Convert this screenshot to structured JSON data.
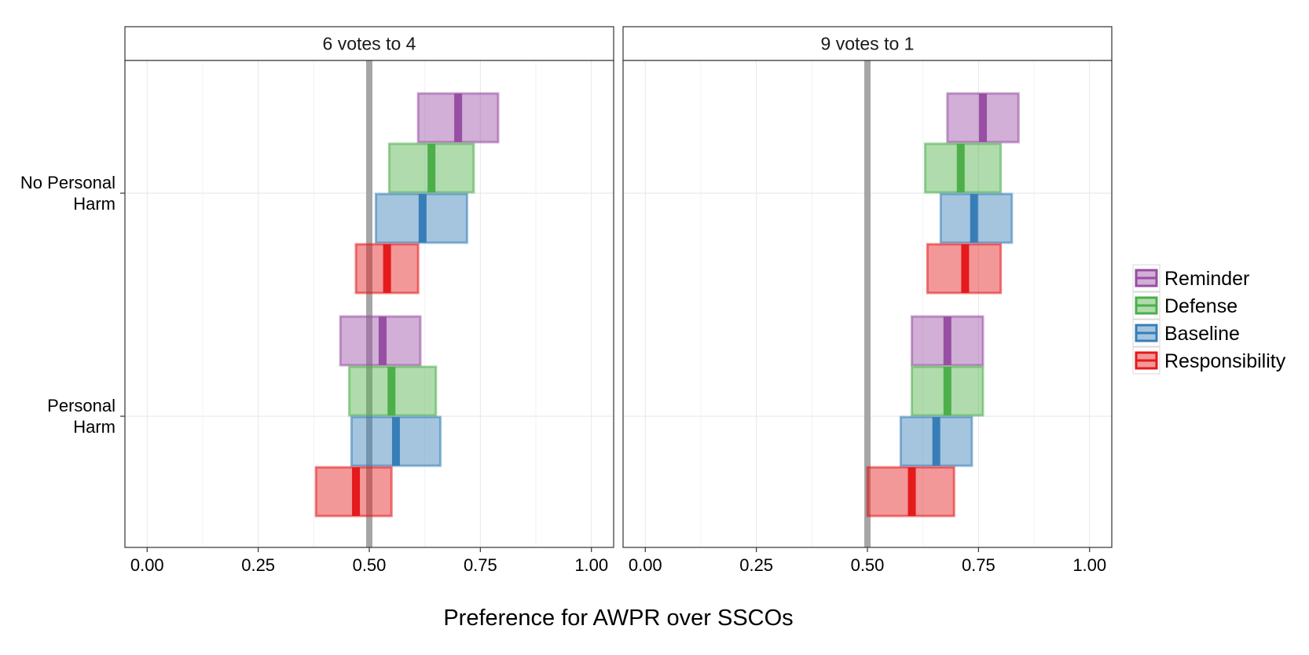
{
  "chart_data": {
    "type": "crossbar",
    "xlabel": "Preference for AWPR over SSCOs",
    "ylabel": "",
    "xlim": [
      -0.05,
      1.05
    ],
    "x_ticks": [
      0.0,
      0.25,
      0.5,
      0.75,
      1.0
    ],
    "x_tick_labels": [
      "0.00",
      "0.25",
      "0.50",
      "0.75",
      "1.00"
    ],
    "reference_line_x": 0.5,
    "grid": true,
    "legend_position": "right",
    "y_categories": [
      {
        "label_line1": "No Personal",
        "label_line2": "Harm"
      },
      {
        "label_line1": "Personal",
        "label_line2": "Harm"
      }
    ],
    "series": [
      {
        "name": "Reminder",
        "color": "#984EA3"
      },
      {
        "name": "Defense",
        "color": "#4DAF4A"
      },
      {
        "name": "Baseline",
        "color": "#377EB8"
      },
      {
        "name": "Responsibility",
        "color": "#E41A1C"
      }
    ],
    "panels": [
      {
        "title": "6 votes to 4",
        "bars": [
          {
            "group": 0,
            "series": 0,
            "low": 0.61,
            "mid": 0.7,
            "high": 0.79
          },
          {
            "group": 0,
            "series": 1,
            "low": 0.545,
            "mid": 0.64,
            "high": 0.735
          },
          {
            "group": 0,
            "series": 2,
            "low": 0.515,
            "mid": 0.62,
            "high": 0.72
          },
          {
            "group": 0,
            "series": 3,
            "low": 0.47,
            "mid": 0.54,
            "high": 0.61
          },
          {
            "group": 1,
            "series": 0,
            "low": 0.435,
            "mid": 0.53,
            "high": 0.615
          },
          {
            "group": 1,
            "series": 1,
            "low": 0.455,
            "mid": 0.55,
            "high": 0.65
          },
          {
            "group": 1,
            "series": 2,
            "low": 0.46,
            "mid": 0.56,
            "high": 0.66
          },
          {
            "group": 1,
            "series": 3,
            "low": 0.38,
            "mid": 0.47,
            "high": 0.55
          }
        ]
      },
      {
        "title": "9 votes to 1",
        "bars": [
          {
            "group": 0,
            "series": 0,
            "low": 0.68,
            "mid": 0.76,
            "high": 0.84
          },
          {
            "group": 0,
            "series": 1,
            "low": 0.63,
            "mid": 0.71,
            "high": 0.8
          },
          {
            "group": 0,
            "series": 2,
            "low": 0.665,
            "mid": 0.74,
            "high": 0.825
          },
          {
            "group": 0,
            "series": 3,
            "low": 0.635,
            "mid": 0.72,
            "high": 0.8
          },
          {
            "group": 1,
            "series": 0,
            "low": 0.6,
            "mid": 0.68,
            "high": 0.76
          },
          {
            "group": 1,
            "series": 1,
            "low": 0.6,
            "mid": 0.68,
            "high": 0.76
          },
          {
            "group": 1,
            "series": 2,
            "low": 0.575,
            "mid": 0.655,
            "high": 0.735
          },
          {
            "group": 1,
            "series": 3,
            "low": 0.5,
            "mid": 0.6,
            "high": 0.695
          }
        ]
      }
    ]
  }
}
